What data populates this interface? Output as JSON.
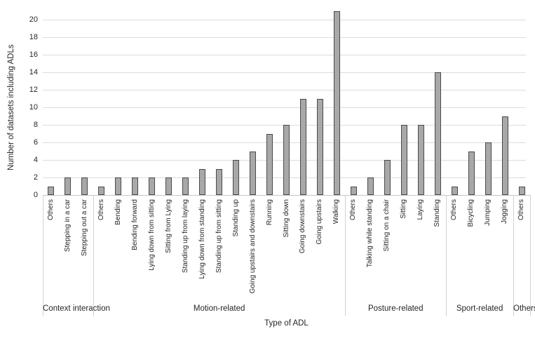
{
  "chart_data": {
    "type": "bar",
    "title": "",
    "xlabel": "Type of ADL",
    "ylabel": "Number of datasets including  ADLs",
    "ylim": [
      0,
      21
    ],
    "yticks": [
      0,
      2,
      4,
      6,
      8,
      10,
      12,
      14,
      16,
      18,
      20
    ],
    "grid": true,
    "legend": "none",
    "colors": {
      "bar_fill": "#a8a8a8",
      "bar_border": "#4a4a4a",
      "gridline": "#dcdcdc",
      "axis_line": "#c6c6c6",
      "text": "#262626"
    },
    "groups": [
      {
        "label": "Context interaction",
        "categories": [
          "Others",
          "Stepping in a car",
          "Stepping out a car"
        ],
        "values": [
          1,
          2,
          2
        ]
      },
      {
        "label": "Motion-related",
        "categories": [
          "Others",
          "Bending",
          "Bending forward",
          "Lying down from sitting",
          "Sitting from Lying",
          "Standing up from laying",
          "Lying down from standing",
          "Standing up from sitting",
          "Standing up",
          "Going upstairs and downstairs",
          "Running",
          "Sitting down",
          "Going downstairs",
          "Going upstairs",
          "Walking"
        ],
        "values": [
          1,
          2,
          2,
          2,
          2,
          2,
          3,
          3,
          4,
          5,
          7,
          8,
          11,
          11,
          21
        ]
      },
      {
        "label": "Posture-related",
        "categories": [
          "Others",
          "Talking while standing",
          "Sitting on a chair",
          "Sitting",
          "Laying",
          "Standing"
        ],
        "values": [
          1,
          2,
          4,
          8,
          8,
          14
        ]
      },
      {
        "label": "Sport-related",
        "categories": [
          "Others",
          "Bicycling",
          "Jumping",
          "Jogging"
        ],
        "values": [
          1,
          5,
          6,
          9
        ]
      },
      {
        "label": "Others",
        "categories": [
          "Others"
        ],
        "values": [
          1
        ]
      }
    ]
  }
}
